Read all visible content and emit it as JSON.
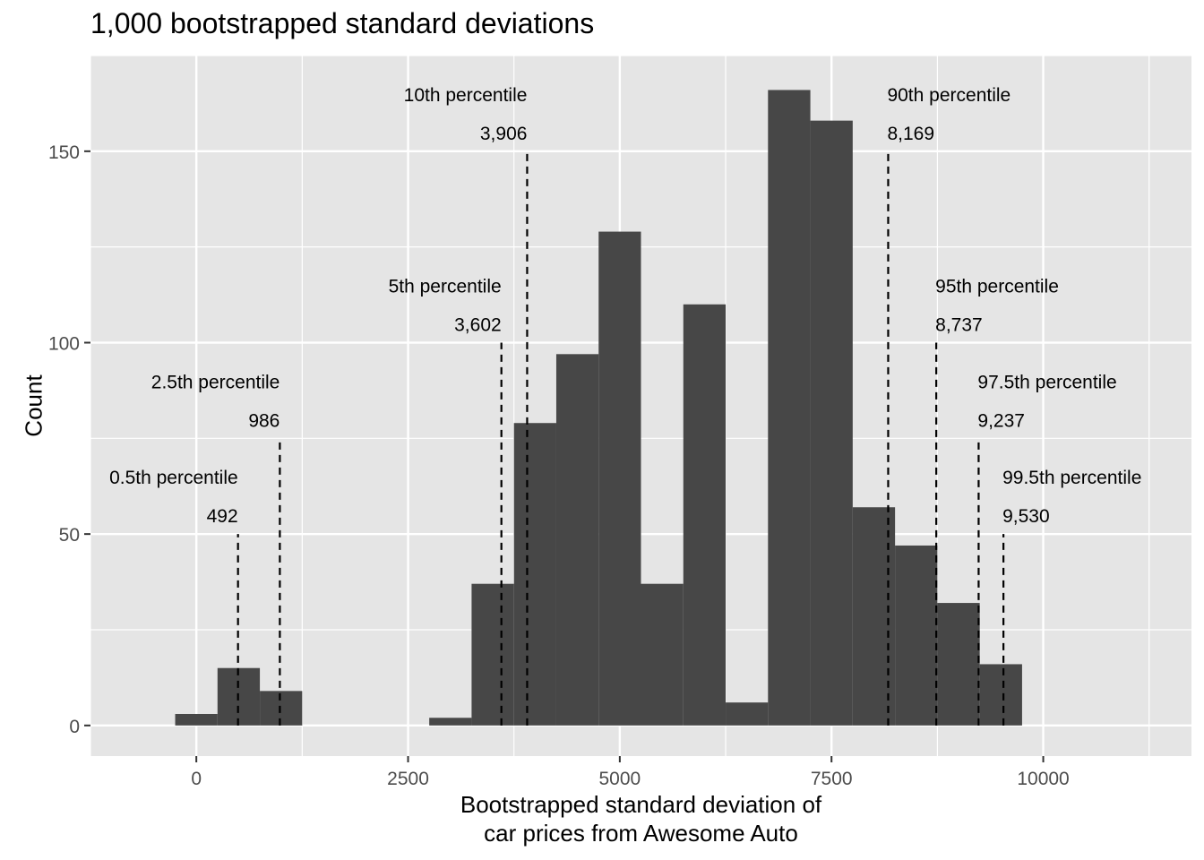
{
  "chart_data": {
    "type": "bar",
    "title": "1,000 bootstrapped standard deviations",
    "xlabel_lines": [
      "Bootstrapped standard deviation of",
      "car prices from Awesome Auto"
    ],
    "ylabel": "Count",
    "xlim": [
      -1250,
      11750
    ],
    "ylim": [
      -8,
      175
    ],
    "x_ticks": [
      0,
      2500,
      5000,
      7500,
      10000
    ],
    "x_tick_labels": [
      "0",
      "2500",
      "5000",
      "7500",
      "10000"
    ],
    "y_ticks": [
      0,
      50,
      100,
      150
    ],
    "y_tick_labels": [
      "0",
      "50",
      "100",
      "150"
    ],
    "grid": true,
    "bin_width": 500,
    "bins": [
      {
        "start": -250,
        "end": 250,
        "count": 3
      },
      {
        "start": 250,
        "end": 750,
        "count": 15
      },
      {
        "start": 750,
        "end": 1250,
        "count": 9
      },
      {
        "start": 2750,
        "end": 3250,
        "count": 2
      },
      {
        "start": 3250,
        "end": 3750,
        "count": 37
      },
      {
        "start": 3750,
        "end": 4250,
        "count": 79
      },
      {
        "start": 4250,
        "end": 4750,
        "count": 97
      },
      {
        "start": 4750,
        "end": 5250,
        "count": 129
      },
      {
        "start": 5250,
        "end": 5750,
        "count": 37
      },
      {
        "start": 5750,
        "end": 6250,
        "count": 110
      },
      {
        "start": 6250,
        "end": 6750,
        "count": 6
      },
      {
        "start": 6750,
        "end": 7250,
        "count": 166
      },
      {
        "start": 7250,
        "end": 7750,
        "count": 158
      },
      {
        "start": 7750,
        "end": 8250,
        "count": 57
      },
      {
        "start": 8250,
        "end": 8750,
        "count": 47
      },
      {
        "start": 8750,
        "end": 9250,
        "count": 32
      },
      {
        "start": 9250,
        "end": 9750,
        "count": 16
      }
    ],
    "annotations": [
      {
        "label": "0.5th percentile",
        "value_text": "492",
        "x": 492,
        "top": 50,
        "side": "left"
      },
      {
        "label": "2.5th percentile",
        "value_text": "986",
        "x": 986,
        "top": 75,
        "side": "left"
      },
      {
        "label": "5th percentile",
        "value_text": "3,602",
        "x": 3602,
        "top": 100,
        "side": "left"
      },
      {
        "label": "10th percentile",
        "value_text": "3,906",
        "x": 3906,
        "top": 150,
        "side": "left"
      },
      {
        "label": "90th percentile",
        "value_text": "8,169",
        "x": 8169,
        "top": 150,
        "side": "right"
      },
      {
        "label": "95th percentile",
        "value_text": "8,737",
        "x": 8737,
        "top": 100,
        "side": "right"
      },
      {
        "label": "97.5th percentile",
        "value_text": "9,237",
        "x": 9237,
        "top": 75,
        "side": "right"
      },
      {
        "label": "99.5th percentile",
        "value_text": "9,530",
        "x": 9530,
        "top": 50,
        "side": "right"
      }
    ],
    "colors": {
      "panel_bg": "#e5e5e5",
      "grid": "#ffffff",
      "bar": "#474747",
      "text": "#000000",
      "tick_text": "#4d4d4d",
      "line": "#000000"
    }
  }
}
